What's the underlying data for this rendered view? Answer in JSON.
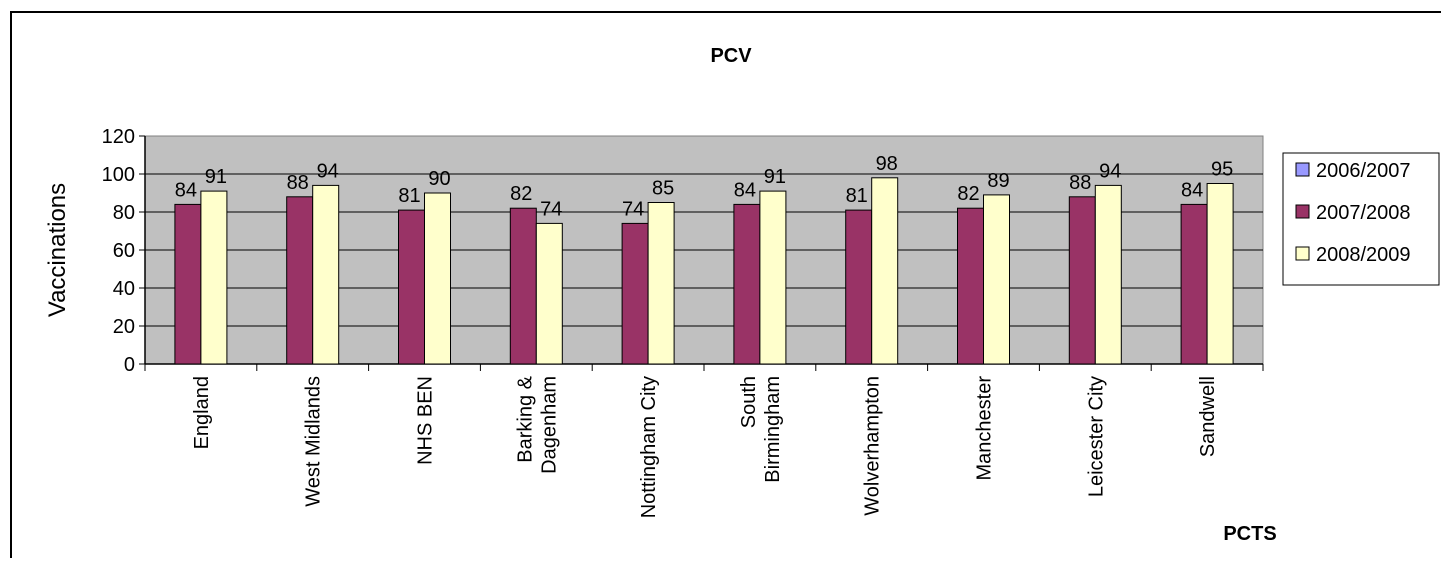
{
  "chart_data": {
    "type": "bar",
    "title": "PCV",
    "xlabel": "PCTS",
    "ylabel": "Vaccinations",
    "ylim": [
      0,
      120
    ],
    "yticks": [
      0,
      20,
      40,
      60,
      80,
      100,
      120
    ],
    "grid": true,
    "legend_position": "right",
    "categories": [
      [
        "England"
      ],
      [
        "West Midlands"
      ],
      [
        "NHS BEN"
      ],
      [
        "Barking &",
        "Dagenham"
      ],
      [
        "Nottingham City"
      ],
      [
        "South",
        "Birmingham"
      ],
      [
        "Wolverhampton"
      ],
      [
        "Manchester"
      ],
      [
        "Leicester City"
      ],
      [
        "Sandwell"
      ]
    ],
    "series": [
      {
        "name": "2006/2007",
        "color": "#9999FF",
        "values": [
          null,
          null,
          null,
          null,
          null,
          null,
          null,
          null,
          null,
          null
        ]
      },
      {
        "name": "2007/2008",
        "color": "#993366",
        "values": [
          84,
          88,
          81,
          82,
          74,
          84,
          81,
          82,
          88,
          84
        ]
      },
      {
        "name": "2008/2009",
        "color": "#FFFFCC",
        "values": [
          91,
          94,
          90,
          74,
          85,
          91,
          98,
          89,
          94,
          95
        ]
      }
    ],
    "colors": {
      "plot_background": "#C0C0C0",
      "page_background": "#FFFFFF"
    }
  }
}
